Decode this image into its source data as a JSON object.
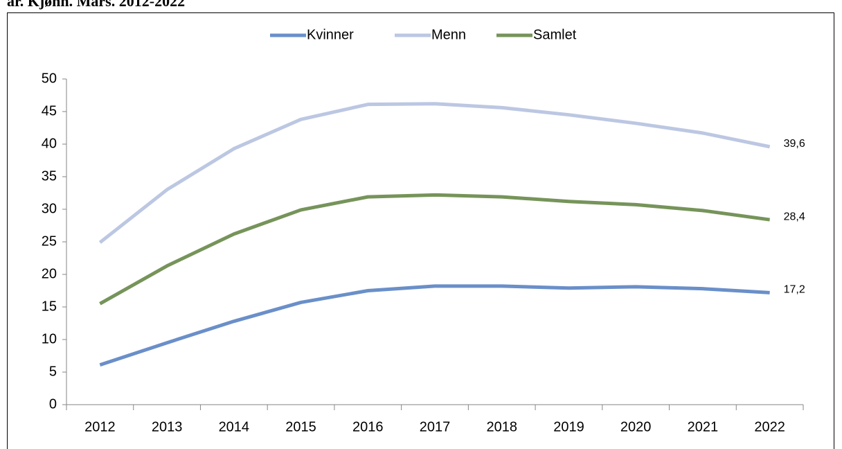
{
  "chart_data": {
    "type": "line",
    "title": "ar. Kjønn. Mars. 2012-2022",
    "categories": [
      "2012",
      "2013",
      "2014",
      "2015",
      "2016",
      "2017",
      "2018",
      "2019",
      "2020",
      "2021",
      "2022"
    ],
    "series": [
      {
        "name": "Kvinner",
        "color": "#6a8fc9",
        "values": [
          6.1,
          9.5,
          12.8,
          15.7,
          17.5,
          18.2,
          18.2,
          17.9,
          18.1,
          17.8,
          17.2
        ],
        "value_labels": [
          null,
          null,
          null,
          null,
          null,
          null,
          null,
          null,
          null,
          null,
          "17,2"
        ]
      },
      {
        "name": "Menn",
        "color": "#bcc7e2",
        "values": [
          24.9,
          33.0,
          39.3,
          43.8,
          46.1,
          46.2,
          45.6,
          44.5,
          43.2,
          41.7,
          39.6
        ],
        "value_labels": [
          null,
          null,
          null,
          null,
          null,
          null,
          null,
          null,
          null,
          null,
          "39,6"
        ]
      },
      {
        "name": "Samlet",
        "color": "#76945a",
        "values": [
          15.5,
          21.3,
          26.2,
          29.9,
          31.9,
          32.2,
          31.9,
          31.2,
          30.7,
          29.8,
          28.4
        ],
        "value_labels": [
          null,
          null,
          null,
          null,
          null,
          null,
          null,
          null,
          null,
          null,
          "28,4"
        ]
      }
    ],
    "ylim": [
      0,
      50
    ],
    "yticks": [
      0,
      5,
      10,
      15,
      20,
      25,
      30,
      35,
      40,
      45,
      50
    ],
    "grid": false,
    "legend": "top"
  }
}
